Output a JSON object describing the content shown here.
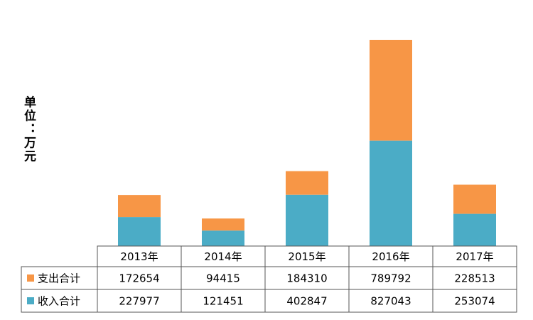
{
  "chart_data": {
    "type": "bar",
    "stacked": true,
    "y_label": "单位：万元",
    "categories": [
      "2013年",
      "2014年",
      "2015年",
      "2016年",
      "2017年"
    ],
    "series": [
      {
        "name": "收入合计",
        "color": "#4bacc6",
        "values": [
          227977,
          121451,
          402847,
          827043,
          253074
        ]
      },
      {
        "name": "支出合计",
        "color": "#f79646",
        "values": [
          172654,
          94415,
          184310,
          789792,
          228513
        ]
      }
    ]
  }
}
